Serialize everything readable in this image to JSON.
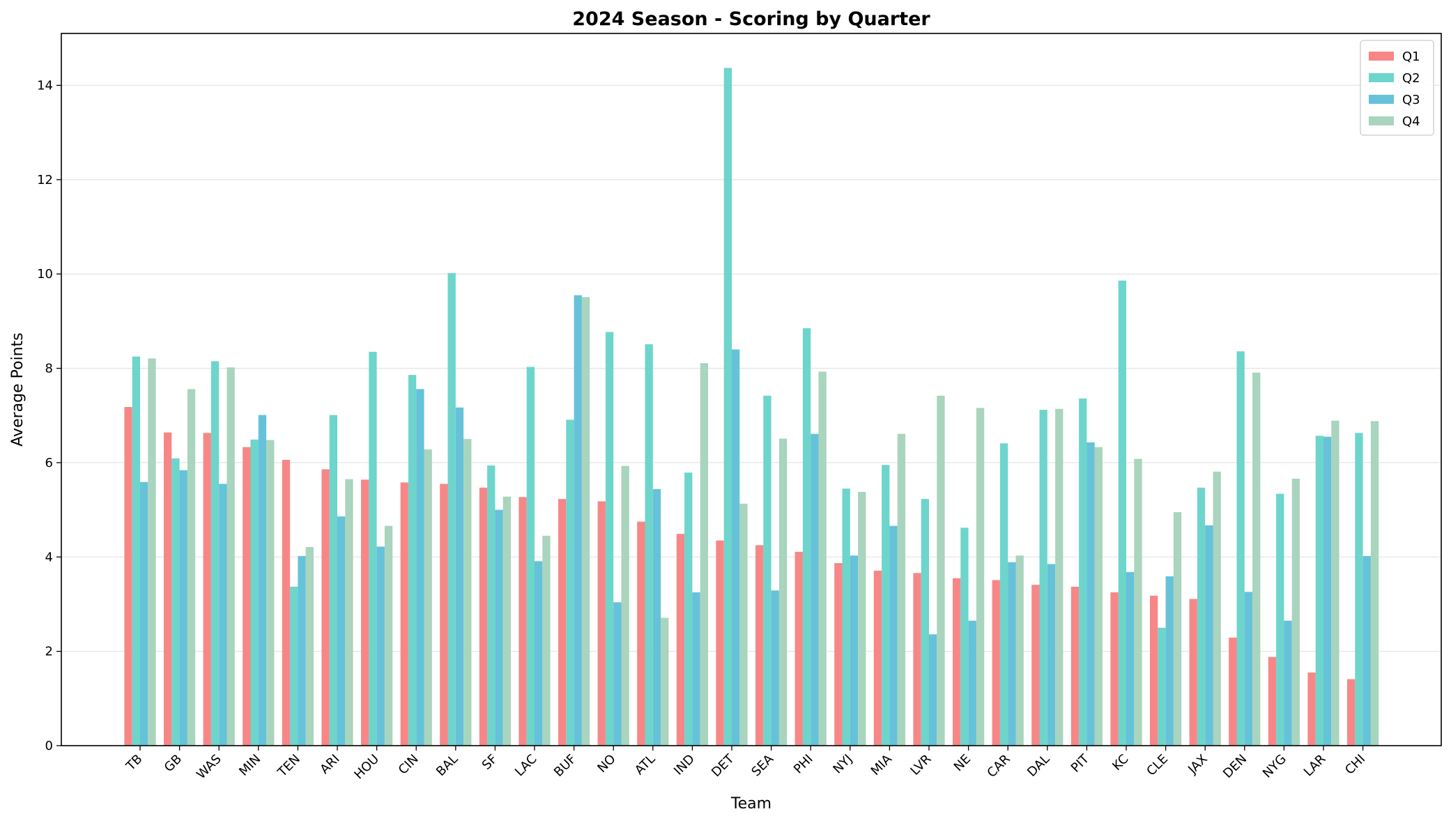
{
  "chart_data": {
    "type": "bar",
    "title": "2024 Season - Scoring by Quarter",
    "xlabel": "Team",
    "ylabel": "Average Points",
    "ylim": [
      0,
      15.1
    ],
    "yticks": [
      0,
      2,
      4,
      6,
      8,
      10,
      12,
      14
    ],
    "grid": "horizontal",
    "legend_position": "top-right",
    "categories": [
      "TB",
      "GB",
      "WAS",
      "MIN",
      "TEN",
      "ARI",
      "HOU",
      "CIN",
      "BAL",
      "SF",
      "LAC",
      "BUF",
      "NO",
      "ATL",
      "IND",
      "DET",
      "SEA",
      "PHI",
      "NYJ",
      "MIA",
      "LVR",
      "NE",
      "CAR",
      "DAL",
      "PIT",
      "KC",
      "CLE",
      "JAX",
      "DEN",
      "NYG",
      "LAR",
      "CHI"
    ],
    "series": [
      {
        "name": "Q1",
        "color": "#f78787",
        "values": [
          7.18,
          6.64,
          6.63,
          6.33,
          6.06,
          5.86,
          5.64,
          5.58,
          5.55,
          5.47,
          5.27,
          5.23,
          5.18,
          4.75,
          4.49,
          4.35,
          4.25,
          4.11,
          3.87,
          3.71,
          3.66,
          3.55,
          3.51,
          3.41,
          3.37,
          3.25,
          3.18,
          3.11,
          2.29,
          1.88,
          1.55,
          1.41
        ]
      },
      {
        "name": "Q2",
        "color": "#6dd5cc",
        "values": [
          8.25,
          6.09,
          8.15,
          6.49,
          3.37,
          7.01,
          8.35,
          7.86,
          10.02,
          5.94,
          8.03,
          6.91,
          8.77,
          8.51,
          5.79,
          14.37,
          7.42,
          8.85,
          5.45,
          5.95,
          5.23,
          4.62,
          6.41,
          7.12,
          7.36,
          9.86,
          2.5,
          5.47,
          8.36,
          5.34,
          6.57,
          6.63
        ]
      },
      {
        "name": "Q3",
        "color": "#65c2d9",
        "values": [
          5.59,
          5.84,
          5.55,
          7.01,
          4.02,
          4.86,
          4.22,
          7.56,
          7.17,
          5.0,
          3.91,
          9.55,
          3.04,
          5.44,
          3.25,
          8.4,
          3.29,
          6.61,
          4.03,
          4.66,
          2.36,
          2.65,
          3.89,
          3.85,
          6.43,
          3.68,
          3.59,
          4.67,
          3.26,
          2.65,
          6.55,
          4.02
        ]
      },
      {
        "name": "Q4",
        "color": "#a9d4be",
        "values": [
          8.21,
          7.56,
          8.02,
          6.48,
          4.21,
          5.65,
          4.66,
          6.28,
          6.5,
          5.28,
          4.45,
          9.51,
          5.93,
          2.71,
          8.11,
          5.13,
          6.51,
          7.93,
          5.38,
          6.61,
          7.42,
          7.16,
          4.03,
          7.14,
          6.33,
          6.08,
          4.95,
          5.81,
          7.91,
          5.66,
          6.89,
          6.88
        ]
      }
    ]
  }
}
